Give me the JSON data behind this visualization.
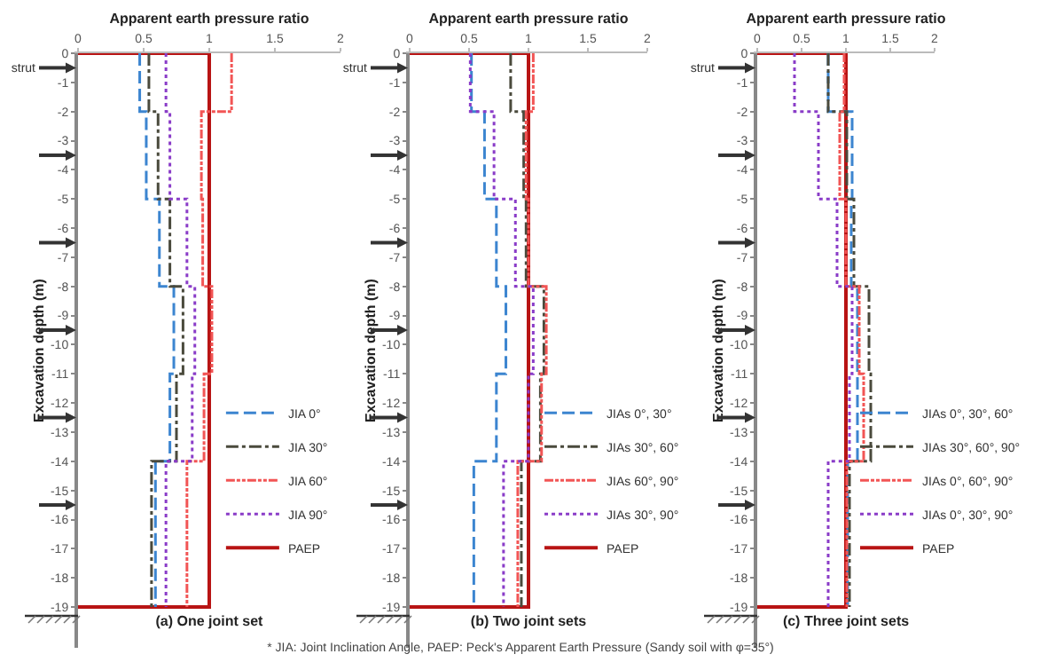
{
  "chart_data": [
    {
      "type": "line",
      "title": "(a) One joint set",
      "xlabel": "Apparent earth pressure ratio",
      "ylabel": "Excavation depth (m)",
      "xlim": [
        0,
        2
      ],
      "xticks": [
        0,
        0.5,
        1,
        1.5,
        2
      ],
      "ylim": [
        -20.4,
        0
      ],
      "yticks": [
        0,
        -1,
        -2,
        -3,
        -4,
        -5,
        -6,
        -7,
        -8,
        -9,
        -10,
        -11,
        -12,
        -13,
        -14,
        -15,
        -16,
        -17,
        -18,
        -19
      ],
      "legend": "bottom right",
      "annotations": [
        "strut"
      ],
      "series": [
        {
          "name": "JIA 0°",
          "color": "#3c85d0",
          "line_style": "dashed",
          "x": [
            0.47,
            0.47,
            0.52,
            0.52,
            0.62,
            0.62,
            0.73,
            0.73,
            0.7,
            0.7,
            0.59,
            0.59
          ],
          "values": [
            0,
            -2,
            -2,
            -5,
            -5,
            -8,
            -8,
            -11,
            -11,
            -14,
            -14,
            -19
          ]
        },
        {
          "name": "JIA 30°",
          "color": "#4a4a3c",
          "line_style": "dashdot",
          "x": [
            0.54,
            0.54,
            0.61,
            0.61,
            0.7,
            0.7,
            0.8,
            0.8,
            0.75,
            0.75,
            0.56,
            0.56
          ],
          "values": [
            0,
            -2,
            -2,
            -5,
            -5,
            -8,
            -8,
            -11,
            -11,
            -14,
            -14,
            -19
          ]
        },
        {
          "name": "JIA 60°",
          "color": "#f25555",
          "line_style": "dashdotdot",
          "x": [
            1.17,
            1.17,
            0.94,
            0.94,
            0.95,
            0.95,
            1.02,
            1.02,
            0.96,
            0.96,
            0.83,
            0.83
          ],
          "values": [
            0,
            -2,
            -2,
            -5,
            -5,
            -8,
            -8,
            -11,
            -11,
            -14,
            -14,
            -19
          ]
        },
        {
          "name": "JIA 90°",
          "color": "#8a3cc8",
          "line_style": "dotted",
          "x": [
            0.67,
            0.67,
            0.7,
            0.7,
            0.83,
            0.83,
            0.89,
            0.89,
            0.87,
            0.87,
            0.67,
            0.67
          ],
          "values": [
            0,
            -2,
            -2,
            -5,
            -5,
            -8,
            -8,
            -11,
            -11,
            -14,
            -14,
            -19
          ]
        },
        {
          "name": "PAEP",
          "color": "#b81414",
          "line_style": "solid",
          "x": [
            0,
            1,
            1,
            0
          ],
          "values": [
            0,
            0,
            -19,
            -19
          ]
        }
      ]
    },
    {
      "type": "line",
      "title": "(b) Two joint sets",
      "xlabel": "Apparent earth pressure ratio",
      "ylabel": "Excavation depth (m)",
      "xlim": [
        0,
        2
      ],
      "xticks": [
        0,
        0.5,
        1,
        1.5,
        2
      ],
      "ylim": [
        -20.4,
        0
      ],
      "yticks": [
        0,
        -1,
        -2,
        -3,
        -4,
        -5,
        -6,
        -7,
        -8,
        -9,
        -10,
        -11,
        -12,
        -13,
        -14,
        -15,
        -16,
        -17,
        -18,
        -19
      ],
      "legend": "bottom right",
      "annotations": [
        "strut",
        "* JIA: Joint Inclination Angle, PAEP: Peck's Apparent Earth Pressure (Sandy soil with φ=35°)"
      ],
      "series": [
        {
          "name": "JIAs 0°, 30°",
          "color": "#3c85d0",
          "line_style": "dashed",
          "x": [
            0.52,
            0.52,
            0.63,
            0.63,
            0.73,
            0.73,
            0.81,
            0.81,
            0.73,
            0.73,
            0.54,
            0.54
          ],
          "values": [
            0,
            -2,
            -2,
            -5,
            -5,
            -8,
            -8,
            -11,
            -11,
            -14,
            -14,
            -19
          ]
        },
        {
          "name": "JIAs 30°, 60°",
          "color": "#4a4a3c",
          "line_style": "dashdot",
          "x": [
            0.85,
            0.85,
            0.96,
            0.96,
            0.98,
            0.98,
            1.13,
            1.13,
            1.1,
            1.1,
            0.94,
            0.94
          ],
          "values": [
            0,
            -2,
            -2,
            -5,
            -5,
            -8,
            -8,
            -11,
            -11,
            -14,
            -14,
            -19
          ]
        },
        {
          "name": "JIAs 60°, 90°",
          "color": "#f25555",
          "line_style": "dashdotdot",
          "x": [
            1.04,
            1.04,
            0.98,
            0.98,
            1.0,
            1.0,
            1.15,
            1.15,
            1.11,
            1.11,
            0.91,
            0.91
          ],
          "values": [
            0,
            -2,
            -2,
            -5,
            -5,
            -8,
            -8,
            -11,
            -11,
            -14,
            -14,
            -19
          ]
        },
        {
          "name": "JIAs 30°, 90°",
          "color": "#8a3cc8",
          "line_style": "dotted",
          "x": [
            0.51,
            0.51,
            0.71,
            0.71,
            0.89,
            0.89,
            1.04,
            1.04,
            1.0,
            1.0,
            0.79,
            0.79
          ],
          "values": [
            0,
            -2,
            -2,
            -5,
            -5,
            -8,
            -8,
            -11,
            -11,
            -14,
            -14,
            -19
          ]
        },
        {
          "name": "PAEP",
          "color": "#b81414",
          "line_style": "solid",
          "x": [
            0,
            1,
            1,
            0
          ],
          "values": [
            0,
            0,
            -19,
            -19
          ]
        }
      ]
    },
    {
      "type": "line",
      "title": "(c) Three joint sets",
      "xlabel": "Apparent earth pressure ratio",
      "ylabel": "Excavation depth (m)",
      "xlim": [
        0,
        2
      ],
      "xticks": [
        0,
        0.5,
        1,
        1.5,
        2
      ],
      "ylim": [
        -20.4,
        0
      ],
      "yticks": [
        0,
        -1,
        -2,
        -3,
        -4,
        -5,
        -6,
        -7,
        -8,
        -9,
        -10,
        -11,
        -12,
        -13,
        -14,
        -15,
        -16,
        -17,
        -18,
        -19
      ],
      "legend": "bottom right",
      "annotations": [
        "strut"
      ],
      "series": [
        {
          "name": "JIAs 0°, 30°, 60°",
          "color": "#3c85d0",
          "line_style": "dashed",
          "x": [
            0.8,
            0.8,
            1.07,
            1.07,
            1.06,
            1.06,
            1.13,
            1.13,
            1.13,
            1.13,
            1.02,
            1.02
          ],
          "values": [
            0,
            -2,
            -2,
            -5,
            -5,
            -8,
            -8,
            -11,
            -11,
            -14,
            -14,
            -19
          ]
        },
        {
          "name": "JIAs 30°, 60°, 90°",
          "color": "#4a4a3c",
          "line_style": "dashdot",
          "x": [
            0.8,
            0.8,
            1.01,
            1.01,
            1.09,
            1.09,
            1.26,
            1.26,
            1.28,
            1.28,
            1.04,
            1.04
          ],
          "values": [
            0,
            -2,
            -2,
            -5,
            -5,
            -8,
            -8,
            -11,
            -11,
            -14,
            -14,
            -19
          ]
        },
        {
          "name": "JIAs 0°, 60°, 90°",
          "color": "#f25555",
          "line_style": "dashdotdot",
          "x": [
            0.98,
            0.98,
            0.93,
            0.93,
            1.0,
            1.0,
            1.15,
            1.15,
            1.2,
            1.2,
            1.01,
            1.01
          ],
          "values": [
            0,
            -2,
            -2,
            -5,
            -5,
            -8,
            -8,
            -11,
            -11,
            -14,
            -14,
            -19
          ]
        },
        {
          "name": "JIAs 0°, 30°, 90°",
          "color": "#8a3cc8",
          "line_style": "dotted",
          "x": [
            0.42,
            0.42,
            0.69,
            0.69,
            0.9,
            0.9,
            1.07,
            1.07,
            1.04,
            1.04,
            0.8,
            0.8
          ],
          "values": [
            0,
            -2,
            -2,
            -5,
            -5,
            -8,
            -8,
            -11,
            -11,
            -14,
            -14,
            -19
          ]
        },
        {
          "name": "PAEP",
          "color": "#b81414",
          "line_style": "solid",
          "x": [
            0,
            1,
            1,
            0
          ],
          "values": [
            0,
            0,
            -19,
            -19
          ]
        }
      ]
    }
  ]
}
